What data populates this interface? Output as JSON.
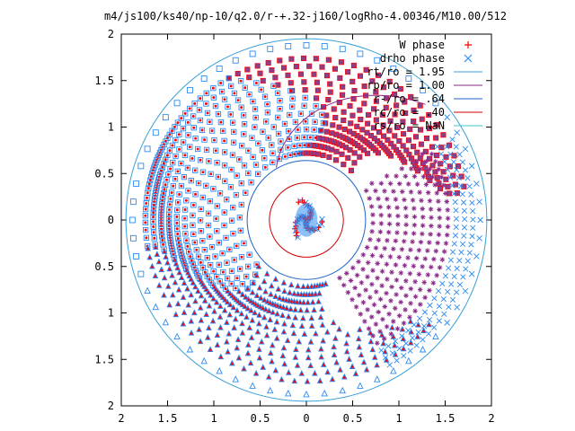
{
  "chart_data": {
    "type": "scatter",
    "title": "m4/js100/ks40/np-10/q2.0/r-+.32-j160/logRho-4.00346/M10.00/512",
    "xlim": [
      -2,
      2
    ],
    "ylim": [
      -2,
      2
    ],
    "x_tick_labels": [
      "2",
      "1.5",
      "1",
      "0.5",
      "0",
      "0.5",
      "1",
      "1.5",
      "2"
    ],
    "y_tick_labels": [
      "2",
      "1.5",
      "1",
      "0.5",
      "0",
      "0.5",
      "1",
      "1.5",
      "2"
    ],
    "x_tick_values": [
      -2,
      -1.5,
      -1,
      -0.5,
      0,
      0.5,
      1,
      1.5,
      2
    ],
    "y_tick_values": [
      2,
      1.5,
      1,
      0.5,
      0,
      -0.5,
      -1,
      -1.5,
      -2
    ],
    "grid": false,
    "legend_position": "top-right",
    "legend": [
      {
        "label": "W phase",
        "color": "#ff0000",
        "marker": "plus"
      },
      {
        "label": "drho phase",
        "color": "#2d8cf0",
        "marker": "cross"
      },
      {
        "label": "rt/ro = 1.95",
        "color": "#3aa0d8",
        "marker": "line"
      },
      {
        "label": "rp/ro = 1.00",
        "color": "#8a2b8a",
        "marker": "line"
      },
      {
        "label": "r-/ro = .64",
        "color": "#1e64c8",
        "marker": "line"
      },
      {
        "label": "rc/ro = .40",
        "color": "#d00000",
        "marker": "line"
      },
      {
        "label": "rs/ro = NaN",
        "color": "#3cc8c8",
        "marker": "line"
      }
    ],
    "circles": [
      {
        "name": "rt/ro = 1.95",
        "radius": 1.95,
        "color": "#3aa0d8"
      },
      {
        "name": "r-/ro = .64",
        "radius": 0.64,
        "color": "#1e64c8"
      },
      {
        "name": "rc/ro = .40",
        "radius": 0.4,
        "color": "#d00000"
      }
    ],
    "spiral_arms": {
      "count": 3,
      "start_angles_deg": [
        95,
        215,
        335
      ],
      "r_inner": 0.9,
      "r_outer": 1.85,
      "marker_shapes": [
        "filled-square",
        "open-square-dot",
        "triangle"
      ],
      "outer_marker_shapes": [
        "plus-cluster",
        "open-square",
        "open-triangle"
      ],
      "outer_quadrant_markers": [
        "asterisk",
        "cross"
      ]
    },
    "series": [
      {
        "name": "W phase",
        "color": "#ff0000"
      },
      {
        "name": "drho phase",
        "color": "#2d8cf0"
      }
    ],
    "colors": {
      "phase_fill": "#8a3f8a",
      "w_phase": "#ff0000",
      "drho_phase": "#2d8cf0",
      "planet_line": "#8a2b8a"
    }
  }
}
